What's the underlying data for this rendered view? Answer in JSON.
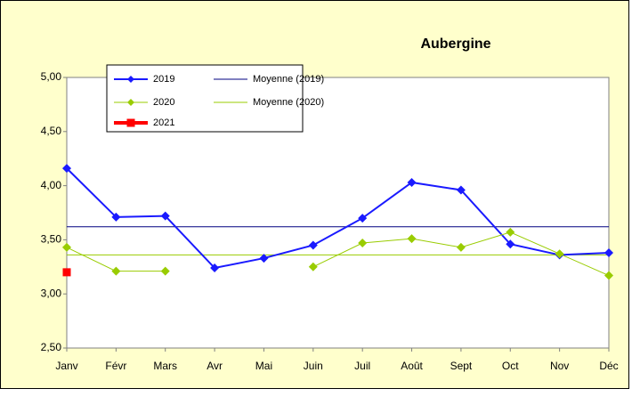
{
  "chart_data": {
    "type": "line",
    "title": "Aubergine",
    "categories": [
      "Janv",
      "Févr",
      "Mars",
      "Avr",
      "Mai",
      "Juin",
      "Juil",
      "Août",
      "Sept",
      "Oct",
      "Nov",
      "Déc"
    ],
    "series": [
      {
        "name": "2019",
        "color": "#1a1aff",
        "marker": "diamond",
        "values": [
          4.16,
          3.71,
          3.72,
          3.24,
          3.33,
          3.45,
          3.7,
          4.03,
          3.96,
          3.46,
          3.36,
          3.38
        ]
      },
      {
        "name": "2020",
        "color": "#99cc00",
        "marker": "diamond",
        "values": [
          3.43,
          3.21,
          3.21,
          null,
          null,
          3.25,
          3.47,
          3.51,
          3.43,
          3.57,
          3.37,
          3.17
        ]
      },
      {
        "name": "2021",
        "color": "#ff0000",
        "marker": "square",
        "values": [
          3.2,
          null,
          null,
          null,
          null,
          null,
          null,
          null,
          null,
          null,
          null,
          null
        ]
      }
    ],
    "reference_lines": [
      {
        "name": "Moyenne (2019)",
        "color": "#000080",
        "value": 3.62
      },
      {
        "name": "Moyenne (2020)",
        "color": "#99cc00",
        "value": 3.36
      }
    ],
    "ylim": [
      2.5,
      5
    ],
    "yticks": [
      {
        "value": 2.5,
        "label": "2,50"
      },
      {
        "value": 3,
        "label": "3,00"
      },
      {
        "value": 3.5,
        "label": "3,50"
      },
      {
        "value": 4,
        "label": "4,00"
      },
      {
        "value": 4.5,
        "label": "4,50"
      },
      {
        "value": 5,
        "label": "5,00"
      }
    ],
    "grid": false
  }
}
